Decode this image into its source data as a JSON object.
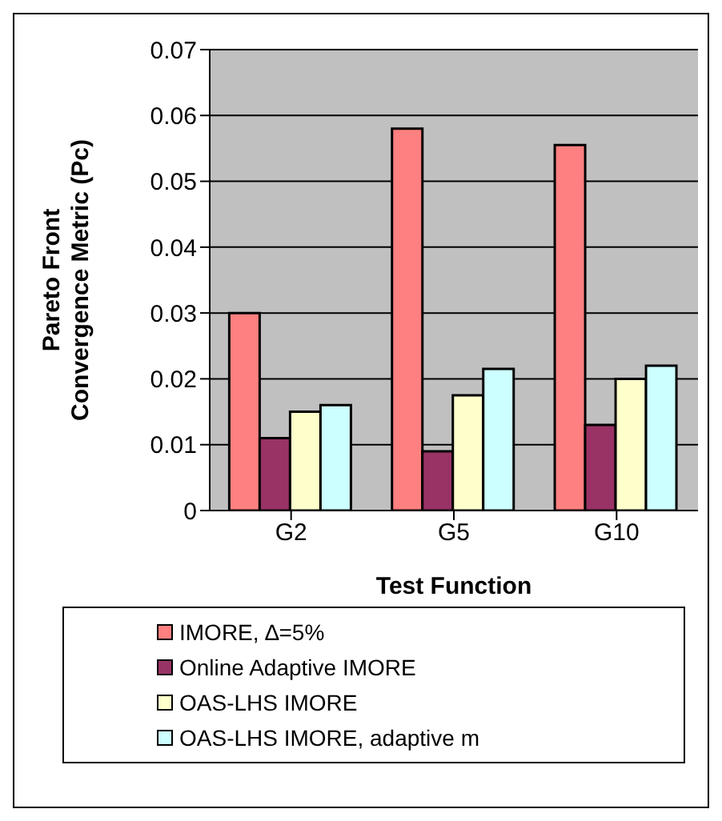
{
  "chart_data": {
    "type": "bar",
    "xlabel": "Test Function",
    "ylabel": "Pareto Front Convergence Metric (Pc)",
    "categories": [
      "G2",
      "G5",
      "G10"
    ],
    "series": [
      {
        "name": "IMORE, ∆=5%",
        "color": "#ff8080",
        "values": [
          0.03,
          0.058,
          0.0555
        ]
      },
      {
        "name": "Online Adaptive IMORE",
        "color": "#993366",
        "values": [
          0.011,
          0.009,
          0.013
        ]
      },
      {
        "name": "OAS-LHS IMORE",
        "color": "#ffffcc",
        "values": [
          0.015,
          0.0175,
          0.02
        ]
      },
      {
        "name": "OAS-LHS IMORE, adaptive m",
        "color": "#ccffff",
        "values": [
          0.016,
          0.0215,
          0.022
        ]
      }
    ],
    "ylim": [
      0,
      0.07
    ],
    "yticks": [
      0,
      0.01,
      0.02,
      0.03,
      0.04,
      0.05,
      0.06,
      0.07
    ],
    "grid": "y",
    "legend": "bottom"
  }
}
